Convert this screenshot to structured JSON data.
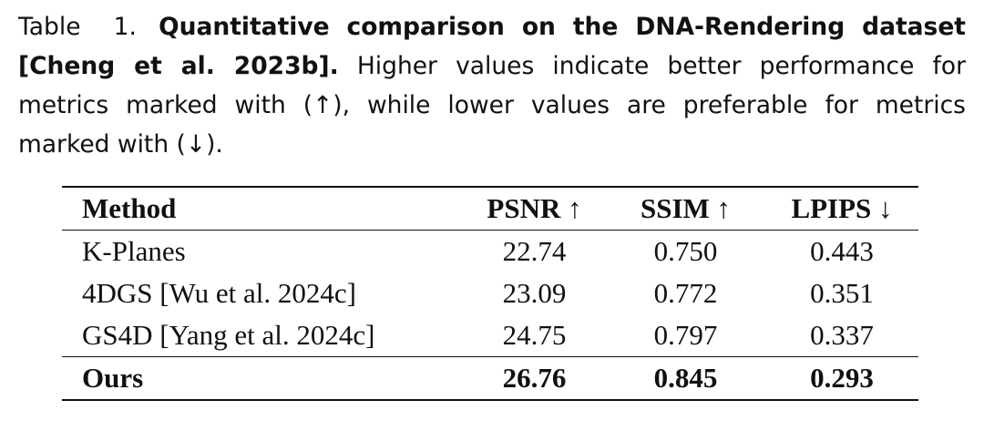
{
  "caption": {
    "label": "Table 1.",
    "title": "Quantitative comparison on the DNA-Rendering dataset [Cheng et al. 2023b].",
    "text": "Higher values indicate better performance for metrics marked with (↑), while lower values are preferable for metrics marked with (↓)."
  },
  "table": {
    "header": [
      "Method",
      "PSNR ↑",
      "SSIM ↑",
      "LPIPS ↓"
    ],
    "rows": [
      [
        "K-Planes",
        "22.74",
        "0.750",
        "0.443"
      ],
      [
        "4DGS [Wu et al. 2024c]",
        "23.09",
        "0.772",
        "0.351"
      ],
      [
        "GS4D [Yang et al. 2024c]",
        "24.75",
        "0.797",
        "0.337"
      ],
      [
        "Ours",
        "26.76",
        "0.845",
        "0.293"
      ]
    ]
  }
}
